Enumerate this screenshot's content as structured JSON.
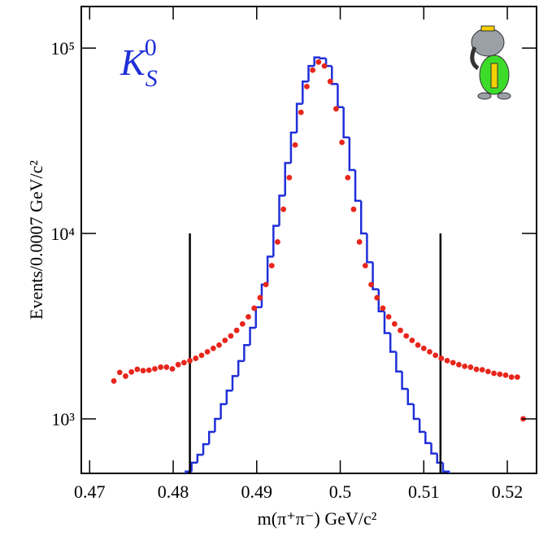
{
  "chart_data": {
    "type": "histogram",
    "x_label": "m(π⁺π⁻) GeV/c²",
    "y_label": "Events/0.0007 GeV/c²",
    "annotation": {
      "main": "K",
      "sub": "S",
      "sup": "0"
    },
    "xlim": [
      0.469,
      0.5235
    ],
    "ylim": [
      508,
      167500
    ],
    "log_y": true,
    "xticks": [
      0.47,
      0.48,
      0.49,
      0.5,
      0.51,
      0.52
    ],
    "yticks": [
      {
        "value": 1000,
        "label": "10³"
      },
      {
        "value": 10000,
        "label": "10⁴"
      },
      {
        "value": 100000,
        "label": "10⁵"
      }
    ],
    "histogram": {
      "color": "#1f2fd8",
      "bins": [
        0.4815,
        0.4822,
        0.4829,
        0.4836,
        0.4843,
        0.485,
        0.4857,
        0.4864,
        0.4871,
        0.4878,
        0.4885,
        0.4892,
        0.4899,
        0.4906,
        0.4913,
        0.492,
        0.4927,
        0.4934,
        0.4941,
        0.4948,
        0.4955,
        0.4962,
        0.4969,
        0.4976,
        0.4983,
        0.499,
        0.4997,
        0.5004,
        0.5011,
        0.5018,
        0.5025,
        0.5032,
        0.5039,
        0.5046,
        0.5053,
        0.506,
        0.5067,
        0.5074,
        0.5081,
        0.5088,
        0.5095,
        0.5102,
        0.5109,
        0.5116,
        0.5123,
        0.513
      ],
      "values": [
        520,
        580,
        640,
        730,
        850,
        1000,
        1200,
        1420,
        1700,
        2050,
        2500,
        3100,
        4000,
        5300,
        7500,
        11000,
        16000,
        24000,
        35000,
        50000,
        66000,
        80000,
        89000,
        88000,
        80000,
        64000,
        48000,
        33000,
        22000,
        15000,
        10000,
        7000,
        5000,
        3800,
        2900,
        2300,
        1800,
        1450,
        1200,
        1000,
        850,
        740,
        650,
        580,
        520
      ]
    },
    "points": {
      "color": "#e8261c",
      "x": [
        0.4729,
        0.4736,
        0.4743,
        0.475,
        0.4757,
        0.4764,
        0.4771,
        0.4778,
        0.4785,
        0.4792,
        0.4799,
        0.4806,
        0.4813,
        0.482,
        0.4827,
        0.4834,
        0.4841,
        0.4848,
        0.4855,
        0.4862,
        0.4869,
        0.4876,
        0.4883,
        0.489,
        0.4897,
        0.4904,
        0.4911,
        0.4918,
        0.4925,
        0.4932,
        0.4939,
        0.4946,
        0.4953,
        0.496,
        0.4967,
        0.4974,
        0.4981,
        0.4988,
        0.4995,
        0.5002,
        0.5009,
        0.5016,
        0.5023,
        0.503,
        0.5037,
        0.5044,
        0.5051,
        0.5058,
        0.5065,
        0.5072,
        0.5079,
        0.5086,
        0.5093,
        0.51,
        0.5107,
        0.5114,
        0.5121,
        0.5128,
        0.5135,
        0.5142,
        0.5149,
        0.5156,
        0.5163,
        0.517,
        0.5177,
        0.5184,
        0.5191,
        0.5198,
        0.5205,
        0.5212,
        0.5219
      ],
      "values": [
        1600,
        1780,
        1700,
        1790,
        1850,
        1820,
        1830,
        1860,
        1900,
        1900,
        1860,
        1960,
        2010,
        2060,
        2120,
        2200,
        2300,
        2400,
        2500,
        2650,
        2800,
        3000,
        3250,
        3550,
        3950,
        4500,
        5300,
        6700,
        9000,
        13500,
        20000,
        30000,
        45000,
        62000,
        76000,
        84000,
        80000,
        66000,
        47000,
        31000,
        20000,
        13500,
        9000,
        6700,
        5300,
        4500,
        3950,
        3550,
        3250,
        3000,
        2800,
        2650,
        2500,
        2400,
        2300,
        2200,
        2120,
        2060,
        2010,
        1960,
        1920,
        1900,
        1850,
        1840,
        1800,
        1760,
        1740,
        1720,
        1680,
        1680,
        1000
      ]
    },
    "cut_lines": {
      "x": [
        0.482,
        0.512
      ],
      "top": 10000,
      "color": "#000000"
    }
  }
}
